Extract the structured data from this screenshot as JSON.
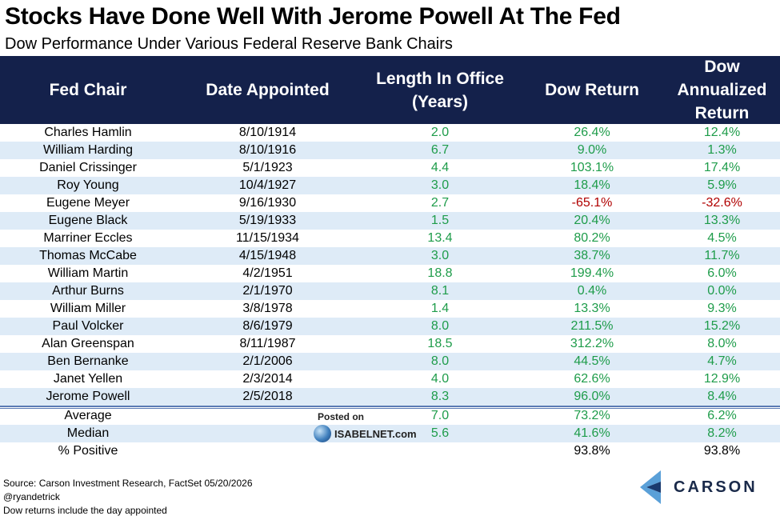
{
  "title": "Stocks Have Done Well With Jerome Powell At The Fed",
  "subtitle": "Dow Performance Under Various Federal Reserve Bank Chairs",
  "chart_data": {
    "type": "table",
    "columns": [
      "Fed Chair",
      "Date Appointed",
      "Length In Office (Years)",
      "Dow Return",
      "Dow Annualized Return"
    ],
    "rows": [
      [
        "Charles Hamlin",
        "8/10/1914",
        "2.0",
        "26.4%",
        "12.4%"
      ],
      [
        "William Harding",
        "8/10/1916",
        "6.7",
        "9.0%",
        "1.3%"
      ],
      [
        "Daniel Crissinger",
        "5/1/1923",
        "4.4",
        "103.1%",
        "17.4%"
      ],
      [
        "Roy Young",
        "10/4/1927",
        "3.0",
        "18.4%",
        "5.9%"
      ],
      [
        "Eugene Meyer",
        "9/16/1930",
        "2.7",
        "-65.1%",
        "-32.6%"
      ],
      [
        "Eugene Black",
        "5/19/1933",
        "1.5",
        "20.4%",
        "13.3%"
      ],
      [
        "Marriner Eccles",
        "11/15/1934",
        "13.4",
        "80.2%",
        "4.5%"
      ],
      [
        "Thomas McCabe",
        "4/15/1948",
        "3.0",
        "38.7%",
        "11.7%"
      ],
      [
        "William Martin",
        "4/2/1951",
        "18.8",
        "199.4%",
        "6.0%"
      ],
      [
        "Arthur Burns",
        "2/1/1970",
        "8.1",
        "0.4%",
        "0.0%"
      ],
      [
        "William Miller",
        "3/8/1978",
        "1.4",
        "13.3%",
        "9.3%"
      ],
      [
        "Paul Volcker",
        "8/6/1979",
        "8.0",
        "211.5%",
        "15.2%"
      ],
      [
        "Alan Greenspan",
        "8/11/1987",
        "18.5",
        "312.2%",
        "8.0%"
      ],
      [
        "Ben Bernanke",
        "2/1/2006",
        "8.0",
        "44.5%",
        "4.7%"
      ],
      [
        "Janet Yellen",
        "2/3/2014",
        "4.0",
        "62.6%",
        "12.9%"
      ],
      [
        "Jerome Powell",
        "2/5/2018",
        "8.3",
        "96.0%",
        "8.4%"
      ]
    ],
    "summary": [
      [
        "Average",
        "",
        "7.0",
        "73.2%",
        "6.2%"
      ],
      [
        "Median",
        "",
        "5.6",
        "41.6%",
        "8.2%"
      ],
      [
        "% Positive",
        "",
        "",
        "93.8%",
        "93.8%"
      ]
    ]
  },
  "header": {
    "c1": "Fed Chair",
    "c2": "Date Appointed",
    "c3_line1": "Length In Office",
    "c3_line2": "(Years)",
    "c4": "Dow Return",
    "c5_line1": "Dow",
    "c5_line2": "Annualized",
    "c5_line3": "Return"
  },
  "watermark": {
    "posted_on": "Posted on",
    "site": "ISABELNET.com"
  },
  "footer": {
    "source": "Source: Carson Investment Research, FactSet 05/20/2026",
    "handle": "@ryandetrick",
    "note": "Dow returns include the day appointed"
  },
  "brand": {
    "name": "CARSON"
  },
  "colors": {
    "header_bg": "#14214b",
    "alt_row": "#deebf7",
    "positive": "#1e9c4a",
    "negative": "#b00000"
  }
}
